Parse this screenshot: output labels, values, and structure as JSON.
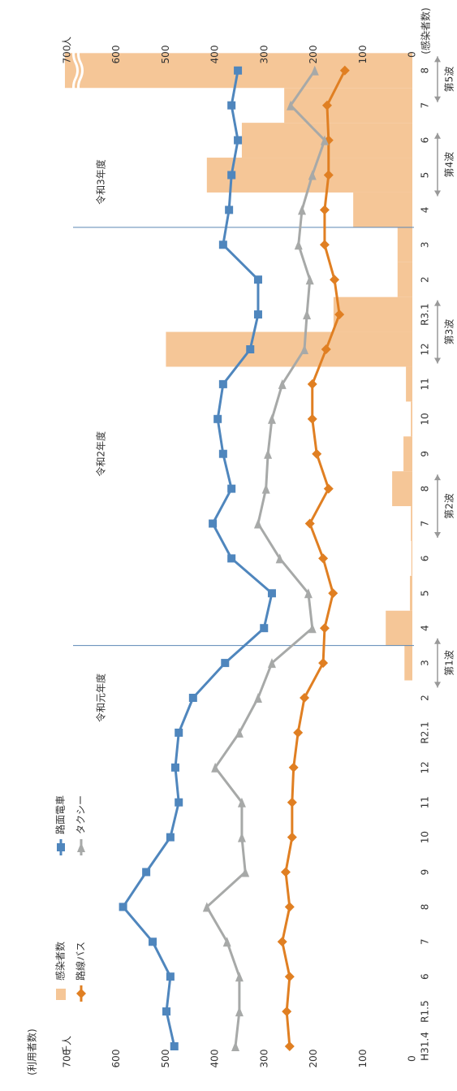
{
  "chart_data": {
    "type": "line",
    "left_axis": {
      "caption": "(利用者数)",
      "unit": "千人"
    },
    "right_axis": {
      "caption": "(感染者数)",
      "unit": "人"
    },
    "categories": [
      "H31.4",
      "R1.5",
      "6",
      "7",
      "8",
      "9",
      "10",
      "11",
      "12",
      "R2.1",
      "2",
      "3",
      "4",
      "5",
      "6",
      "7",
      "8",
      "9",
      "10",
      "11",
      "12",
      "R3.1",
      "2",
      "3",
      "4",
      "5",
      "6",
      "7",
      "8"
    ],
    "series": [
      {
        "name": "感染者数",
        "type": "bar",
        "axis": "y2",
        "color": "#f5c697",
        "values": [
          0,
          0,
          0,
          0,
          0,
          0,
          0,
          0,
          0,
          0,
          0,
          16,
          54,
          5,
          2,
          3,
          41,
          18,
          3,
          13,
          500,
          160,
          30,
          30,
          120,
          417,
          346,
          260,
          705
        ]
      },
      {
        "name": "路面電車",
        "type": "line",
        "marker": "square",
        "color": "#4f86bd",
        "values": [
          483,
          499,
          491,
          527,
          587,
          540,
          491,
          474,
          481,
          474,
          445,
          380,
          301,
          285,
          367,
          405,
          367,
          384,
          395,
          384,
          329,
          313,
          313,
          384,
          372,
          367,
          354,
          367,
          354
        ]
      },
      {
        "name": "路線バス",
        "type": "line",
        "marker": "diamond",
        "color": "#e07f22",
        "values": [
          249,
          255,
          249,
          264,
          249,
          257,
          244,
          244,
          241,
          232,
          219,
          181,
          178,
          161,
          181,
          208,
          170,
          194,
          203,
          203,
          175,
          148,
          158,
          178,
          178,
          170,
          170,
          173,
          137
        ]
      },
      {
        "name": "タクシー",
        "type": "line",
        "marker": "triangle",
        "color": "#a7a9a8",
        "values": [
          359,
          351,
          351,
          376,
          417,
          339,
          346,
          346,
          400,
          351,
          313,
          285,
          203,
          211,
          269,
          313,
          297,
          293,
          285,
          264,
          219,
          214,
          208,
          231,
          224,
          203,
          178,
          247,
          198
        ]
      }
    ],
    "ylim": [
      0,
      700
    ],
    "yticks": [
      0,
      100,
      200,
      300,
      400,
      500,
      600,
      700
    ],
    "y2lim": [
      0,
      700
    ],
    "y2ticks": [
      0,
      100,
      200,
      300,
      400,
      500,
      600,
      700
    ],
    "fiscal_years": [
      "令和元年度",
      "令和2年度",
      "令和3年度"
    ],
    "waves": [
      "第1波",
      "第2波",
      "第3波",
      "第4波",
      "第5波"
    ]
  }
}
